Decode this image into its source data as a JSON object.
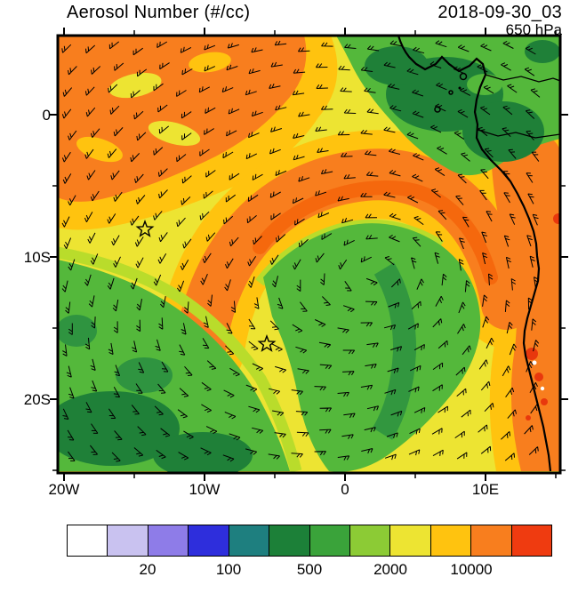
{
  "header": {
    "title": "Aerosol Number (#/cc)",
    "datetime": "2018-09-30_03",
    "level": "650 hPa"
  },
  "axes": {
    "lat_ticks": [
      "0",
      "10S",
      "20S"
    ],
    "lon_ticks": [
      "20W",
      "10W",
      "0",
      "10E"
    ]
  },
  "colorbar": {
    "labels": [
      "20",
      "100",
      "500",
      "2000",
      "10000"
    ],
    "colors": [
      "#FFFFFF",
      "#C9C2F0",
      "#8E7CE8",
      "#2E2EDC",
      "#1E7F7F",
      "#1C8038",
      "#3AA33A",
      "#8CCB35",
      "#EDE432",
      "#FFC30F",
      "#F87E1E",
      "#EF3B10"
    ],
    "units": "#/cc"
  },
  "chart_data": {
    "type": "heatmap",
    "title": "Aerosol Number (#/cc)",
    "valid_time": "2018-09-30_03",
    "pressure_level": "650 hPa",
    "projection": "lat-lon map, South-East Atlantic / Central Africa",
    "lon_range": [
      "20W",
      "15E"
    ],
    "lat_range": [
      "5N",
      "25S"
    ],
    "scale_tick_values": [
      20,
      100,
      500,
      2000,
      10000
    ],
    "scale_bins": [
      "<10",
      "10-20",
      "20-50",
      "50-100",
      "100-200",
      "200-500",
      "500-1000",
      "1000-2000",
      "2000-5000",
      "5000-10000",
      "10000-20000",
      ">20000"
    ],
    "legend_position": "bottom",
    "grid": false,
    "overlays": [
      "wind barbs",
      "coastlines",
      "country borders",
      "star markers"
    ],
    "markers": [
      {
        "name": "star-1",
        "lon": "14.2W",
        "lat": "8S"
      },
      {
        "name": "star-2",
        "lon": "5.6W",
        "lat": "16S"
      }
    ],
    "regions": [
      {
        "area": "northwest quadrant (20W-5W, 5N-3S)",
        "aerosol_number": "10000-20000",
        "color": "orange with yellow/gold mottling"
      },
      {
        "area": "central plume arc (12W-12E, 3S-12S)",
        "aerosol_number": "10000-20000",
        "color": "orange ringed by gold"
      },
      {
        "area": "Congo basin / Gulf of Guinea northeast",
        "aerosol_number": "200-1000",
        "color": "green with dark green cores"
      },
      {
        "area": "southwest corner (20W-12W, 12S-25S)",
        "aerosol_number": "200-1000",
        "color": "green with dark green patches"
      },
      {
        "area": "south-central lobe (6W-6E, 10S-24S)",
        "aerosol_number": "500-2000",
        "color": "green / yellow-green"
      },
      {
        "area": "Angola coastal strip (11E-14E, 4S-25S)",
        "aerosol_number": "10000->20000",
        "color": "orange with red and white specks"
      },
      {
        "area": "background elsewhere",
        "aerosol_number": "2000-5000",
        "color": "yellow"
      }
    ]
  }
}
